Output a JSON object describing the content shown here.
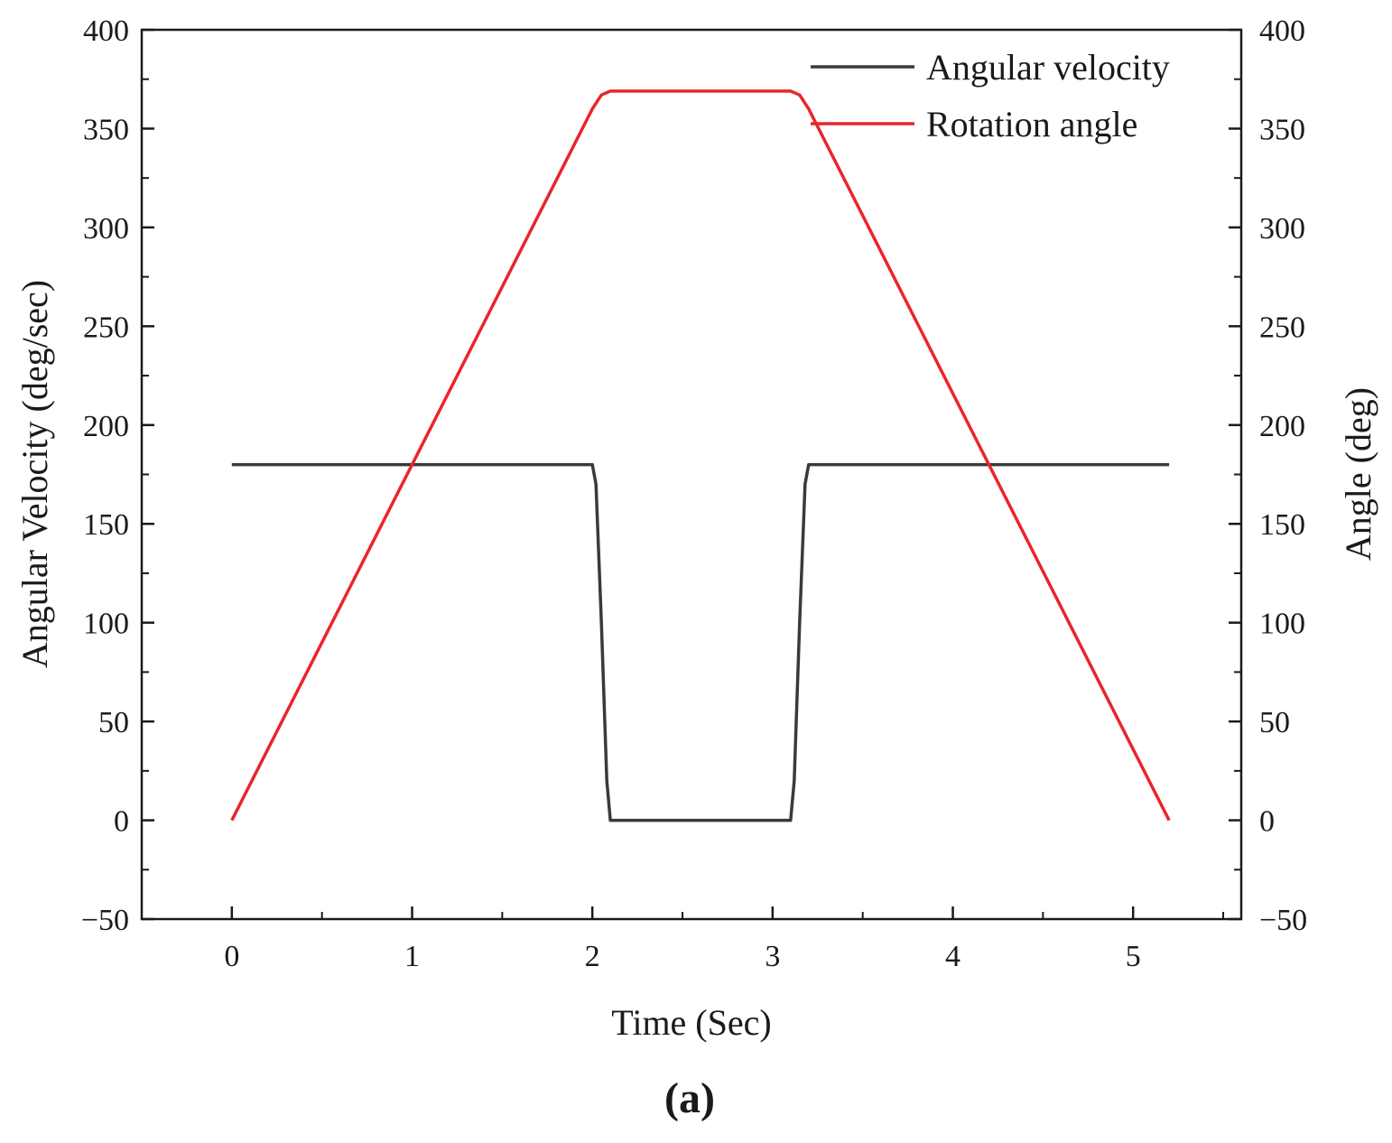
{
  "chart_data": {
    "type": "line",
    "xlabel": "Time (Sec)",
    "ylabel_left": "Angular Velocity (deg/sec)",
    "ylabel_right": "Angle (deg)",
    "panel_label": "(a)",
    "xlim": [
      -0.5,
      5.6
    ],
    "ylim_left": [
      -50,
      400
    ],
    "ylim_right": [
      -50,
      400
    ],
    "x_ticks": [
      0,
      1,
      2,
      3,
      4,
      5
    ],
    "y_ticks_left": [
      -50,
      0,
      50,
      100,
      150,
      200,
      250,
      300,
      350,
      400
    ],
    "y_ticks_right": [
      -50,
      0,
      50,
      100,
      150,
      200,
      250,
      300,
      350,
      400
    ],
    "legend_position": "top-right",
    "grid": false,
    "series": [
      {
        "name": "Angular velocity",
        "color": "#3a3a3a",
        "axis": "left",
        "x": [
          0,
          2.0,
          2.02,
          2.05,
          2.08,
          2.1,
          3.1,
          3.12,
          3.15,
          3.18,
          3.2,
          5.2
        ],
        "y": [
          180,
          180,
          170,
          100,
          20,
          0,
          0,
          20,
          100,
          170,
          180,
          180
        ]
      },
      {
        "name": "Rotation angle",
        "color": "#e8262b",
        "axis": "right",
        "x": [
          0,
          2.0,
          2.05,
          2.1,
          3.1,
          3.15,
          3.2,
          5.2
        ],
        "y": [
          0,
          360,
          367,
          369,
          369,
          367,
          360,
          0
        ]
      }
    ]
  }
}
